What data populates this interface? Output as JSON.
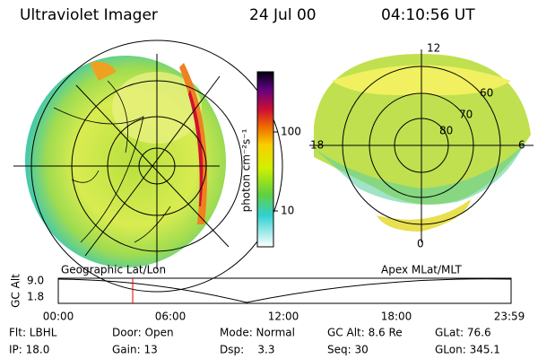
{
  "header": {
    "title": "Ultraviolet Imager",
    "date": "24 Jul 00",
    "time": "04:10:56 UT"
  },
  "colorbar": {
    "label": "photon cm⁻²s⁻¹",
    "ticks": [
      "100",
      "10"
    ]
  },
  "left_map": {
    "caption": "Geographic Lat/Lon"
  },
  "right_map": {
    "caption": "Apex MLat/MLT",
    "mlt_labels": [
      "12",
      "18",
      "6",
      "0"
    ],
    "lat_labels": [
      "60",
      "70",
      "80"
    ]
  },
  "altitude_plot": {
    "y_label": "GC Alt",
    "y_ticks": [
      "9.0",
      "1.8"
    ],
    "x_ticks": [
      "00:00",
      "06:00",
      "12:00",
      "18:00",
      "23:59"
    ]
  },
  "footer": {
    "rows": [
      [
        "Flt: LBHL",
        "Door: Open",
        "Mode: Normal",
        "GC Alt: 8.6 Re",
        "GLat: 76.6"
      ],
      [
        "IP: 18.0",
        "Gain: 13",
        "Dsp:    3.3",
        "Seq: 30",
        "GLon: 345.1"
      ]
    ]
  }
}
